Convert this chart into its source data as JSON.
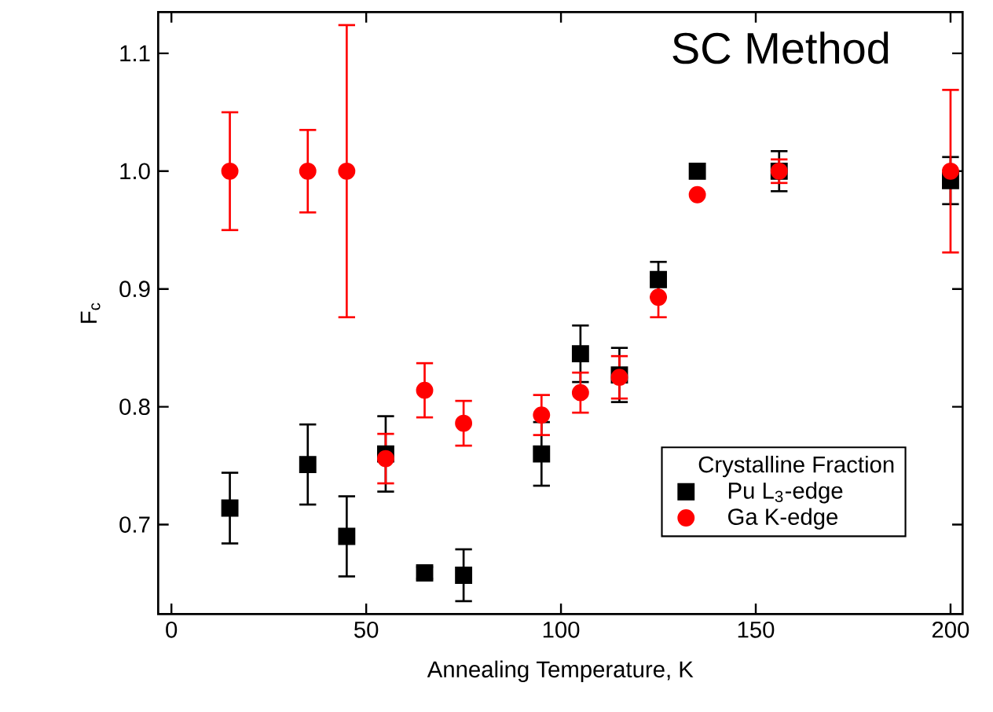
{
  "chart_data": {
    "type": "scatter",
    "title": "SC Method",
    "xlabel": "Annealing Temperature, K",
    "ylabel": "F$_{c}$",
    "legend_title": "Crystalline Fraction",
    "xlim": [
      -3.4,
      203.1
    ],
    "ylim": [
      0.624,
      1.135
    ],
    "xticks": [
      0,
      50,
      100,
      150,
      200
    ],
    "yticks": [
      0.7,
      0.8,
      0.9,
      {
        "value": 1,
        "label": "1.0"
      },
      1.1
    ],
    "grid": false,
    "legend": "right",
    "series": [
      {
        "name": "Pu L$_{3}$-edge",
        "color": "#000000",
        "marker": "square",
        "x": [
          15,
          35,
          45,
          55,
          65,
          75,
          95,
          105,
          115,
          125,
          135,
          156,
          200
        ],
        "values": [
          0.714,
          0.751,
          0.69,
          0.76,
          0.659,
          0.657,
          0.76,
          0.845,
          0.827,
          0.908,
          1.0,
          1.0,
          0.992
        ],
        "errors": [
          0.03,
          0.034,
          0.034,
          0.032,
          0.005,
          0.022,
          0.027,
          0.024,
          0.023,
          0.015,
          null,
          0.017,
          0.02
        ]
      },
      {
        "name": "Ga K-edge",
        "color": "#ff0000",
        "marker": "circle",
        "x": [
          15,
          35,
          45,
          55,
          65,
          75,
          95,
          105,
          115,
          125,
          135,
          156,
          200
        ],
        "values": [
          1.0,
          1.0,
          1.0,
          0.756,
          0.814,
          0.786,
          0.793,
          0.812,
          0.825,
          0.893,
          0.98,
          1.0,
          1.0
        ],
        "errors": [
          0.05,
          0.035,
          0.124,
          0.021,
          0.023,
          0.019,
          0.017,
          0.017,
          0.018,
          0.017,
          null,
          0.01,
          0.069
        ]
      }
    ]
  }
}
